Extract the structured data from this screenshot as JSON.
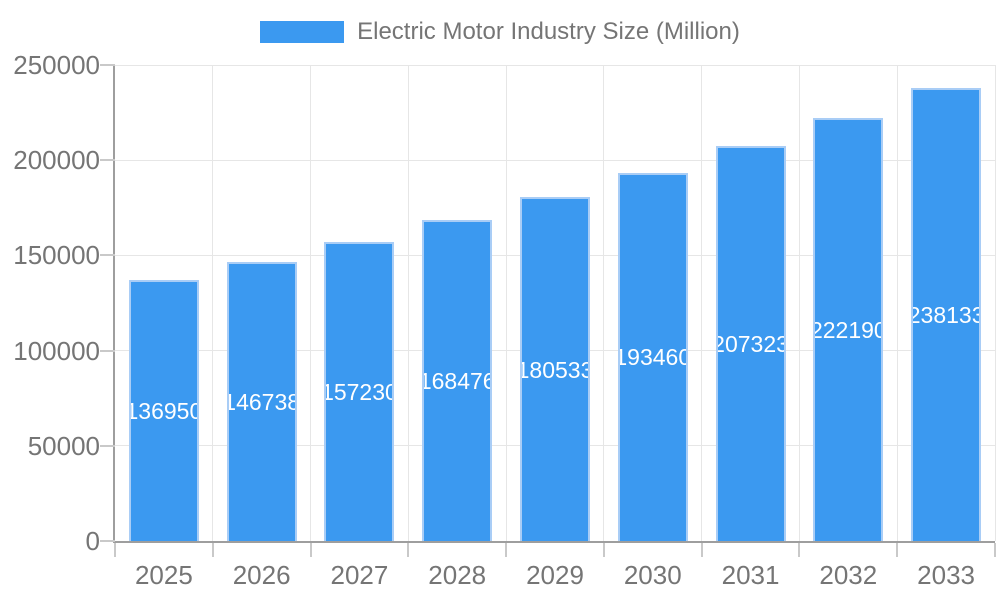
{
  "legend": {
    "label": "Electric Motor Industry Size (Million)"
  },
  "colors": {
    "bar_fill": "#3B99F0",
    "bar_border": "#A9CDF6",
    "bar_label_text": "#FFFFFF",
    "axis_line": "#9E9E9E",
    "gridline": "#E6E6E6",
    "tick_mark": "#C9C9C9",
    "axis_text": "#757575",
    "background": "#FFFFFF"
  },
  "chart_data": {
    "type": "bar",
    "title": "Electric Motor Industry Size (Million)",
    "categories": [
      "2025",
      "2026",
      "2027",
      "2028",
      "2029",
      "2030",
      "2031",
      "2032",
      "2033"
    ],
    "values": [
      136950,
      146738,
      157230,
      168476,
      180533,
      193460,
      207323,
      222190,
      238133
    ],
    "data_labels": [
      "136950",
      "146738",
      "157230",
      "168476",
      "180533",
      "193460",
      "207323",
      "222190",
      "238133"
    ],
    "xlabel": "",
    "ylabel": "",
    "ylim": [
      0,
      250000
    ],
    "yticks": [
      0,
      50000,
      100000,
      150000,
      200000,
      250000
    ],
    "ytick_labels": [
      "0",
      "50000",
      "100000",
      "150000",
      "200000",
      "250000"
    ],
    "grid": true,
    "legend_position": "top",
    "value_label_position": "inside-center"
  }
}
